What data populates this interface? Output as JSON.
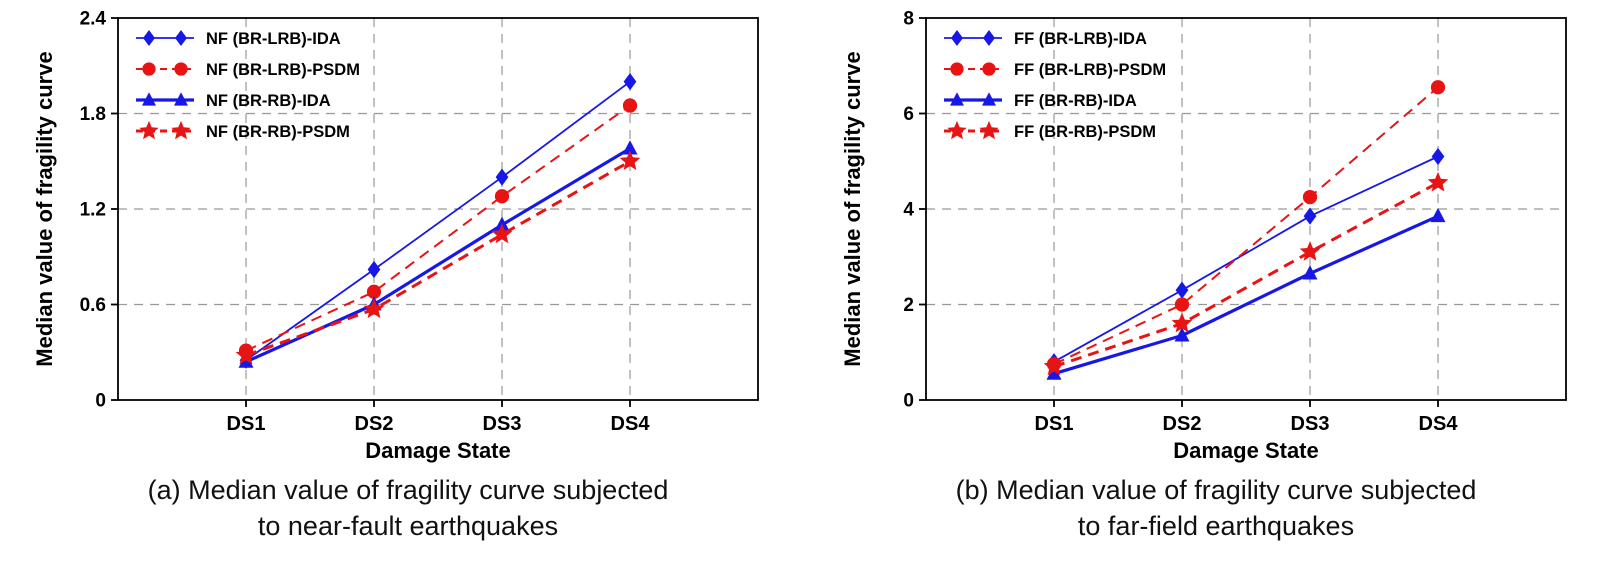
{
  "palette": {
    "blue": "#1818e6",
    "red": "#e81414",
    "grid": "#999999",
    "axis": "#000000",
    "text": "#000000"
  },
  "chart_data": [
    {
      "type": "line",
      "title": "",
      "xlabel": "Damage State",
      "ylabel": "Median value of fragility curve",
      "categories": [
        "DS1",
        "DS2",
        "DS3",
        "DS4"
      ],
      "ylim": [
        0,
        2.4
      ],
      "yticks": [
        0,
        0.6,
        1.2,
        1.8,
        2.4
      ],
      "ytick_labels": [
        "0",
        "0.6",
        "1.2",
        "1.8",
        "2.4"
      ],
      "grid": true,
      "legend_position": "top-left",
      "caption_line1": "(a) Median value of fragility curve subjected",
      "caption_line2": "to near-fault earthquakes",
      "series": [
        {
          "name": "NF (BR-LRB)-IDA",
          "marker": "diamond",
          "color": "#1818e6",
          "dash": "solid",
          "width": 1.8,
          "values": [
            0.25,
            0.82,
            1.4,
            2.0
          ]
        },
        {
          "name": "NF (BR-LRB)-PSDM",
          "marker": "circle",
          "color": "#e81414",
          "dash": "dashed",
          "width": 2.0,
          "values": [
            0.31,
            0.68,
            1.28,
            1.85
          ]
        },
        {
          "name": "NF (BR-RB)-IDA",
          "marker": "triangle",
          "color": "#1818e6",
          "dash": "solid",
          "width": 3.2,
          "values": [
            0.24,
            0.6,
            1.1,
            1.58
          ]
        },
        {
          "name": "NF (BR-RB)-PSDM",
          "marker": "star",
          "color": "#e81414",
          "dash": "dashed",
          "width": 3.0,
          "values": [
            0.28,
            0.57,
            1.04,
            1.5
          ]
        }
      ]
    },
    {
      "type": "line",
      "title": "",
      "xlabel": "Damage State",
      "ylabel": "Median value of fragility curve",
      "categories": [
        "DS1",
        "DS2",
        "DS3",
        "DS4"
      ],
      "ylim": [
        0,
        8
      ],
      "yticks": [
        0,
        2,
        4,
        6,
        8
      ],
      "ytick_labels": [
        "0",
        "2",
        "4",
        "6",
        "8"
      ],
      "grid": true,
      "legend_position": "top-left",
      "caption_line1": "(b) Median value of fragility curve subjected",
      "caption_line2": "to far-field earthquakes",
      "series": [
        {
          "name": "FF (BR-LRB)-IDA",
          "marker": "diamond",
          "color": "#1818e6",
          "dash": "solid",
          "width": 1.8,
          "values": [
            0.8,
            2.3,
            3.85,
            5.1
          ]
        },
        {
          "name": "FF (BR-LRB)-PSDM",
          "marker": "circle",
          "color": "#e81414",
          "dash": "dashed",
          "width": 2.0,
          "values": [
            0.75,
            2.0,
            4.25,
            6.55
          ]
        },
        {
          "name": "FF (BR-RB)-IDA",
          "marker": "triangle",
          "color": "#1818e6",
          "dash": "solid",
          "width": 3.2,
          "values": [
            0.55,
            1.35,
            2.65,
            3.85
          ]
        },
        {
          "name": "FF (BR-RB)-PSDM",
          "marker": "star",
          "color": "#e81414",
          "dash": "dashed",
          "width": 3.0,
          "values": [
            0.7,
            1.6,
            3.1,
            4.55
          ]
        }
      ]
    }
  ]
}
